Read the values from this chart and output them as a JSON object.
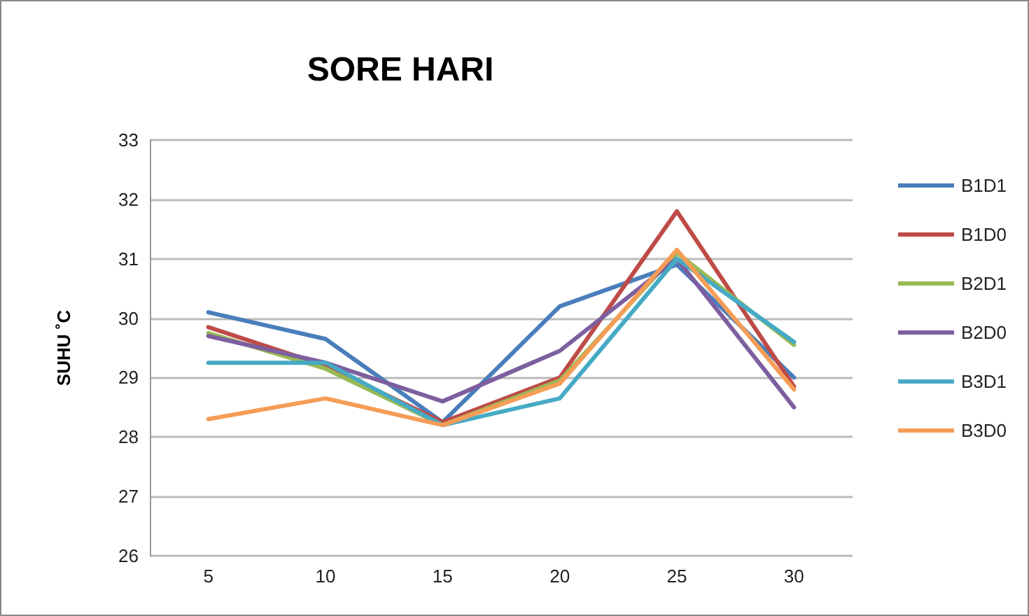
{
  "chart_data": {
    "type": "line",
    "title": "SORE HARI",
    "ylabel": "SUHU ˚C",
    "categories": [
      "5",
      "10",
      "15",
      "20",
      "25",
      "30"
    ],
    "series": [
      {
        "name": "B1D1",
        "color": "#4a7ebb",
        "values": [
          30.1,
          29.65,
          28.25,
          30.2,
          30.9,
          29.0
        ]
      },
      {
        "name": "B1D0",
        "color": "#be4b48",
        "values": [
          29.85,
          29.2,
          28.25,
          29.0,
          31.8,
          28.85
        ]
      },
      {
        "name": "B2D1",
        "color": "#98b954",
        "values": [
          29.75,
          29.15,
          28.2,
          28.95,
          31.1,
          29.55
        ]
      },
      {
        "name": "B2D0",
        "color": "#7d5fa0",
        "values": [
          29.7,
          29.25,
          28.6,
          29.45,
          31.0,
          28.5
        ]
      },
      {
        "name": "B3D1",
        "color": "#46aac5",
        "values": [
          29.25,
          29.25,
          28.2,
          28.65,
          31.0,
          29.6
        ]
      },
      {
        "name": "B3D0",
        "color": "#f59d56",
        "values": [
          28.3,
          28.65,
          28.2,
          28.9,
          31.15,
          28.8
        ]
      }
    ],
    "ylim": [
      26,
      33
    ],
    "yticks": [
      26,
      27,
      28,
      29,
      30,
      31,
      32,
      33
    ],
    "grid": "y",
    "legend": "right",
    "marker": "none",
    "line_style": "solid"
  }
}
